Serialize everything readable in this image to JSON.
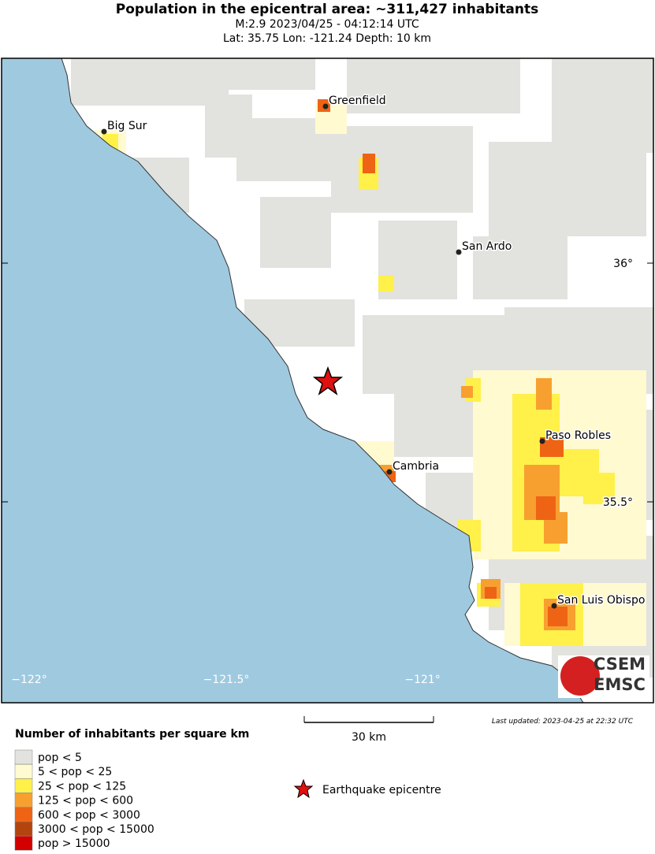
{
  "header": {
    "title": "Population in the epicentral area: ~311,427 inhabitants",
    "subtitle": "M:2.9 2023/04/25 - 04:12:14 UTC",
    "location": "Lat: 35.75 Lon: -121.24 Depth: 10 km"
  },
  "map": {
    "cities": [
      "Greenfield",
      "Big Sur",
      "San Ardo",
      "Paso Robles",
      "Cambria",
      "San Luis Obispo"
    ],
    "lat_labels": [
      "36°",
      "35.5°"
    ],
    "lon_labels": [
      "−122°",
      "−121.5°",
      "−121°"
    ],
    "scale": "30 km",
    "updated": "Last updated: 2023-04-25 at 22:32 UTC",
    "logo": [
      "CSEM",
      "EMSC"
    ]
  },
  "legend": {
    "title": "Number of inhabitants per square km",
    "items": [
      {
        "label": "pop < 5",
        "color": "#e2e2de"
      },
      {
        "label": "5 < pop < 25",
        "color": "#fffad0"
      },
      {
        "label": "25 < pop < 125",
        "color": "#fff04a"
      },
      {
        "label": "125 < pop < 600",
        "color": "#f7a030"
      },
      {
        "label": "600 < pop < 3000",
        "color": "#ee6414"
      },
      {
        "label": "3000 < pop < 15000",
        "color": "#b4440e"
      },
      {
        "label": "pop > 15000",
        "color": "#d40000"
      }
    ],
    "epicentre": "Earthquake epicentre"
  }
}
